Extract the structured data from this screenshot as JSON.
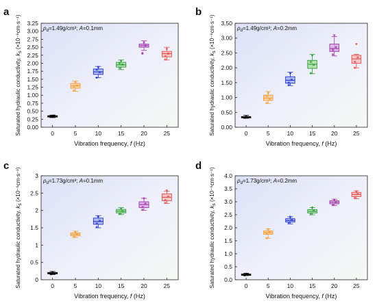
{
  "figure": {
    "panels": [
      {
        "letter": "a",
        "condition": "ρd=1.49g/cm³; A=0.1mm",
        "ylabel": "Saturated hydraulic conductivity, ks (×10⁻⁶cm·s⁻¹)",
        "xlabel": "Vibration frequency, f (Hz)"
      },
      {
        "letter": "b",
        "condition": "ρd=1.49g/cm³; A=0.2mm",
        "ylabel": "Saturated hydraulic conductivity, ks (×10⁻⁶cm·s⁻¹)",
        "xlabel": "Vibration frequency, f (Hz)"
      },
      {
        "letter": "c",
        "condition": "ρd=1.73g/cm³; A=0.1mm",
        "ylabel": "Saturated hydraulic conductivity, ks (×10⁻⁶cm·s⁻¹)",
        "xlabel": "Vibration frequency, f (Hz)"
      },
      {
        "letter": "d",
        "condition": "ρd=1.73g/cm³; A=0.2mm",
        "ylabel": "Saturated hydraulic conductivity, ks (×10⁻⁶cm·s⁻¹)",
        "xlabel": "Vibration frequency, f (Hz)"
      }
    ]
  },
  "chart_data": [
    {
      "type": "box",
      "panel": "a",
      "xlabel": "Vibration frequency, f (Hz)",
      "ylabel": "Saturated hydraulic conductivity, ks (×10⁻⁶cm·s⁻¹)",
      "categories": [
        "0",
        "5",
        "10",
        "15",
        "20",
        "25"
      ],
      "ylim": [
        0,
        3.25
      ],
      "yticks": [
        "0.00",
        "0.25",
        "0.50",
        "0.75",
        "1.00",
        "1.25",
        "1.50",
        "1.75",
        "2.00",
        "2.25",
        "2.50",
        "2.75",
        "3.00",
        "3.25"
      ],
      "boxes": [
        {
          "category": "0",
          "whisker_low": 0.3,
          "q1": 0.32,
          "median": 0.34,
          "q3": 0.36,
          "whisker_high": 0.38,
          "color": "#000000",
          "fill": "#7a7a7a",
          "points": [
            0.33,
            0.35,
            0.36,
            0.34
          ]
        },
        {
          "category": "5",
          "whisker_low": 1.12,
          "q1": 1.22,
          "median": 1.3,
          "q3": 1.37,
          "whisker_high": 1.44,
          "color": "#f39c38",
          "fill": "#fbd19d",
          "points": [
            1.15,
            1.4,
            1.3,
            1.27
          ]
        },
        {
          "category": "10",
          "whisker_low": 1.55,
          "q1": 1.65,
          "median": 1.73,
          "q3": 1.82,
          "whisker_high": 1.9,
          "color": "#2331c8",
          "fill": "#a7b4ec",
          "points": [
            1.55,
            1.88,
            1.72,
            1.8
          ]
        },
        {
          "category": "15",
          "whisker_low": 1.8,
          "q1": 1.88,
          "median": 1.95,
          "q3": 2.03,
          "whisker_high": 2.1,
          "color": "#2c9a35",
          "fill": "#aee0a6",
          "points": [
            1.85,
            2.08,
            1.96,
            2.0
          ]
        },
        {
          "category": "20",
          "whisker_low": 2.4,
          "q1": 2.5,
          "median": 2.55,
          "q3": 2.6,
          "whisker_high": 2.7,
          "color": "#a036a8",
          "fill": "#d7aee0",
          "points": [
            2.32,
            2.65,
            2.55,
            2.3
          ]
        },
        {
          "category": "25",
          "whisker_low": 2.1,
          "q1": 2.2,
          "median": 2.3,
          "q3": 2.37,
          "whisker_high": 2.5,
          "color": "#e64b4b",
          "fill": "#f7c1c1",
          "points": [
            2.12,
            2.45,
            2.3,
            2.22
          ]
        }
      ]
    },
    {
      "type": "box",
      "panel": "b",
      "xlabel": "Vibration frequency, f (Hz)",
      "ylabel": "Saturated hydraulic conductivity, ks (×10⁻⁶cm·s⁻¹)",
      "categories": [
        "0",
        "5",
        "10",
        "15",
        "20",
        "25"
      ],
      "ylim": [
        0,
        3.5
      ],
      "yticks": [
        "0.00",
        "0.50",
        "1.00",
        "1.50",
        "2.00",
        "2.50",
        "3.00",
        "3.50"
      ],
      "boxes": [
        {
          "category": "0",
          "whisker_low": 0.3,
          "q1": 0.32,
          "median": 0.34,
          "q3": 0.36,
          "whisker_high": 0.4,
          "color": "#000000",
          "fill": "#7a7a7a",
          "points": [
            0.32,
            0.36,
            0.34
          ]
        },
        {
          "category": "5",
          "whisker_low": 0.8,
          "q1": 0.9,
          "median": 0.98,
          "q3": 1.08,
          "whisker_high": 1.2,
          "color": "#f39c38",
          "fill": "#fbd19d",
          "points": [
            0.82,
            1.15,
            0.95,
            1.05
          ]
        },
        {
          "category": "10",
          "whisker_low": 1.4,
          "q1": 1.48,
          "median": 1.58,
          "q3": 1.7,
          "whisker_high": 1.85,
          "color": "#2331c8",
          "fill": "#a7b4ec",
          "points": [
            1.42,
            1.82,
            1.6,
            1.5
          ]
        },
        {
          "category": "15",
          "whisker_low": 1.8,
          "q1": 1.98,
          "median": 2.12,
          "q3": 2.25,
          "whisker_high": 2.45,
          "color": "#2c9a35",
          "fill": "#aee0a6",
          "points": [
            1.82,
            2.42,
            2.1,
            2.2
          ]
        },
        {
          "category": "20",
          "whisker_low": 2.4,
          "q1": 2.55,
          "median": 2.65,
          "q3": 2.8,
          "whisker_high": 3.05,
          "color": "#a036a8",
          "fill": "#d7aee0",
          "points": [
            2.45,
            3.1,
            2.7,
            2.6
          ]
        },
        {
          "category": "25",
          "whisker_low": 2.0,
          "q1": 2.15,
          "median": 2.3,
          "q3": 2.42,
          "whisker_high": 2.45,
          "color": "#e64b4b",
          "fill": "#f7c1c1",
          "points": [
            2.0,
            2.8,
            2.35,
            2.2
          ]
        }
      ]
    },
    {
      "type": "box",
      "panel": "c",
      "xlabel": "Vibration frequency, f (Hz)",
      "ylabel": "Saturated hydraulic conductivity, ks (×10⁻⁶cm·s⁻¹)",
      "categories": [
        "0",
        "5",
        "10",
        "15",
        "20",
        "25"
      ],
      "ylim": [
        0,
        3.0
      ],
      "yticks": [
        "0",
        "0.5",
        "1",
        "1.5",
        "2",
        "2.5",
        "3"
      ],
      "boxes": [
        {
          "category": "0",
          "whisker_low": 0.15,
          "q1": 0.17,
          "median": 0.19,
          "q3": 0.21,
          "whisker_high": 0.24,
          "color": "#000000",
          "fill": "#7a7a7a",
          "points": [
            0.16,
            0.22,
            0.19
          ]
        },
        {
          "category": "5",
          "whisker_low": 1.22,
          "q1": 1.27,
          "median": 1.31,
          "q3": 1.35,
          "whisker_high": 1.4,
          "color": "#f39c38",
          "fill": "#fbd19d",
          "points": [
            1.25,
            1.38,
            1.32
          ]
        },
        {
          "category": "10",
          "whisker_low": 1.5,
          "q1": 1.6,
          "median": 1.68,
          "q3": 1.78,
          "whisker_high": 1.85,
          "color": "#2331c8",
          "fill": "#a7b4ec",
          "points": [
            1.52,
            1.82,
            1.7,
            1.62
          ]
        },
        {
          "category": "15",
          "whisker_low": 1.88,
          "q1": 1.93,
          "median": 1.98,
          "q3": 2.03,
          "whisker_high": 2.08,
          "color": "#2c9a35",
          "fill": "#aee0a6",
          "points": [
            1.9,
            2.05,
            1.98
          ]
        },
        {
          "category": "20",
          "whisker_low": 2.0,
          "q1": 2.08,
          "median": 2.17,
          "q3": 2.25,
          "whisker_high": 2.35,
          "color": "#a036a8",
          "fill": "#d7aee0",
          "points": [
            2.02,
            2.35,
            2.2,
            2.1
          ]
        },
        {
          "category": "25",
          "whisker_low": 2.2,
          "q1": 2.28,
          "median": 2.38,
          "q3": 2.48,
          "whisker_high": 2.55,
          "color": "#e64b4b",
          "fill": "#f7c1c1",
          "points": [
            2.22,
            2.58,
            2.4,
            2.3
          ]
        }
      ]
    },
    {
      "type": "box",
      "panel": "d",
      "xlabel": "Vibration frequency, f (Hz)",
      "ylabel": "Saturated hydraulic conductivity, ks (×10⁻⁶cm·s⁻¹)",
      "categories": [
        "0",
        "5",
        "10",
        "15",
        "20",
        "25"
      ],
      "ylim": [
        0,
        4.0
      ],
      "yticks": [
        "0.0",
        "0.5",
        "1.0",
        "1.5",
        "2.0",
        "2.5",
        "3.0",
        "3.5",
        "4.0"
      ],
      "boxes": [
        {
          "category": "0",
          "whisker_low": 0.16,
          "q1": 0.18,
          "median": 0.2,
          "q3": 0.22,
          "whisker_high": 0.25,
          "color": "#000000",
          "fill": "#7a7a7a",
          "points": [
            0.17,
            0.23,
            0.2
          ]
        },
        {
          "category": "5",
          "whisker_low": 1.6,
          "q1": 1.75,
          "median": 1.82,
          "q3": 1.88,
          "whisker_high": 1.95,
          "color": "#f39c38",
          "fill": "#fbd19d",
          "points": [
            1.6,
            1.95,
            1.83,
            1.78
          ]
        },
        {
          "category": "10",
          "whisker_low": 2.15,
          "q1": 2.22,
          "median": 2.28,
          "q3": 2.35,
          "whisker_high": 2.42,
          "color": "#2331c8",
          "fill": "#a7b4ec",
          "points": [
            2.18,
            2.42,
            2.3
          ]
        },
        {
          "category": "15",
          "whisker_low": 2.5,
          "q1": 2.57,
          "median": 2.63,
          "q3": 2.7,
          "whisker_high": 2.78,
          "color": "#2c9a35",
          "fill": "#aee0a6",
          "points": [
            2.52,
            2.78,
            2.65
          ]
        },
        {
          "category": "20",
          "whisker_low": 2.85,
          "q1": 2.92,
          "median": 2.98,
          "q3": 3.04,
          "whisker_high": 3.1,
          "color": "#a036a8",
          "fill": "#d7aee0",
          "points": [
            2.88,
            3.08,
            2.98
          ]
        },
        {
          "category": "25",
          "whisker_low": 3.12,
          "q1": 3.2,
          "median": 3.28,
          "q3": 3.36,
          "whisker_high": 3.42,
          "color": "#e64b4b",
          "fill": "#f7c1c1",
          "points": [
            3.15,
            3.4,
            3.3
          ]
        }
      ]
    }
  ]
}
